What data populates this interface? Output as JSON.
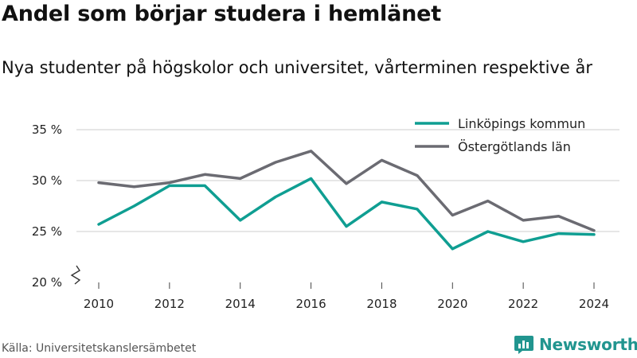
{
  "title": "Andel som börjar studera i hemlänet",
  "subtitle": "Nya studenter på högskolor och universitet, vårterminen respektive år",
  "source": "Källa: Universitetskanslersämbetet",
  "brand": "Newsworthy",
  "colors": {
    "series1": "#0f9e92",
    "series2": "#6b6b72",
    "grid": "#d6d6d6",
    "brand": "#21958f"
  },
  "chart_data": {
    "type": "line",
    "x": [
      2010,
      2011,
      2012,
      2013,
      2014,
      2015,
      2016,
      2017,
      2018,
      2019,
      2020,
      2021,
      2022,
      2023,
      2024
    ],
    "series": [
      {
        "name": "Linköpings kommun",
        "color": "#0f9e92",
        "values": [
          25.7,
          27.5,
          29.5,
          29.5,
          26.1,
          28.4,
          30.2,
          25.5,
          27.9,
          27.2,
          23.3,
          25.0,
          24.0,
          24.8,
          24.7
        ]
      },
      {
        "name": "Östergötlands län",
        "color": "#6b6b72",
        "values": [
          29.8,
          29.4,
          29.8,
          30.6,
          30.2,
          31.8,
          32.9,
          29.7,
          32.0,
          30.5,
          26.6,
          28.0,
          26.1,
          26.5,
          25.1
        ]
      }
    ],
    "yticks": [
      "20 %",
      "25 %",
      "30 %",
      "35 %"
    ],
    "ytick_values": [
      20,
      25,
      30,
      35
    ],
    "xticks": [
      "2010",
      "2012",
      "2014",
      "2016",
      "2018",
      "2020",
      "2022",
      "2024"
    ],
    "xtick_values": [
      2010,
      2012,
      2014,
      2016,
      2018,
      2020,
      2022,
      2024
    ],
    "ylim": [
      20,
      35
    ],
    "xlim": [
      2010,
      2024
    ],
    "axis_break": true,
    "grid": true,
    "legend_position": "top-right"
  }
}
